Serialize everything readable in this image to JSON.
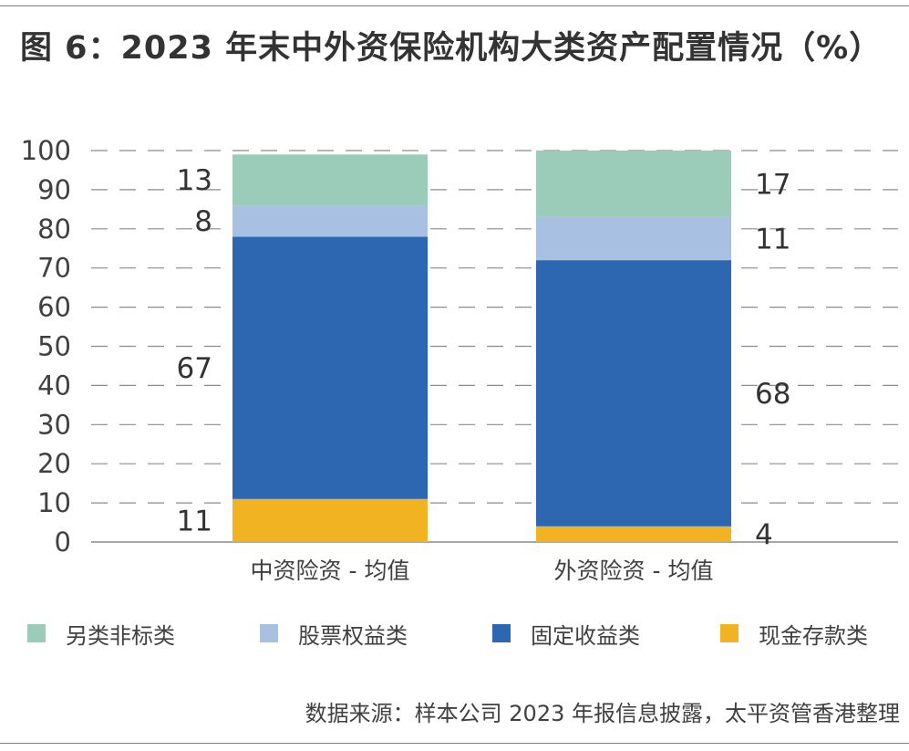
{
  "title": "图 6：2023 年末中外资保险机构大类资产配置情况（%）",
  "source": "数据来源：样本公司 2023 年报信息披露，太平资管香港整理",
  "colors": {
    "other_nonstandard": "#9bcbb9",
    "equity": "#a8c1e2",
    "fixed_income": "#2e67b1",
    "cash_deposit": "#f2b323"
  },
  "chart_data": {
    "type": "bar",
    "stacked": true,
    "categories": [
      "中资险资 - 均值",
      "外资险资 - 均值"
    ],
    "series": [
      {
        "name": "现金存款类",
        "values": [
          11,
          4
        ]
      },
      {
        "name": "固定收益类",
        "values": [
          67,
          68
        ]
      },
      {
        "name": "股票权益类",
        "values": [
          8,
          11
        ]
      },
      {
        "name": "另类非标类",
        "values": [
          13,
          17
        ]
      }
    ],
    "ylim": [
      0,
      100
    ],
    "yticks": [
      0,
      10,
      20,
      30,
      40,
      50,
      60,
      70,
      80,
      90,
      100
    ],
    "grid": true,
    "legend_position": "bottom",
    "xlabel": "",
    "ylabel": ""
  },
  "legend": [
    {
      "label": "另类非标类",
      "color_key": "other_nonstandard"
    },
    {
      "label": "股票权益类",
      "color_key": "equity"
    },
    {
      "label": "固定收益类",
      "color_key": "fixed_income"
    },
    {
      "label": "现金存款类",
      "color_key": "cash_deposit"
    }
  ]
}
